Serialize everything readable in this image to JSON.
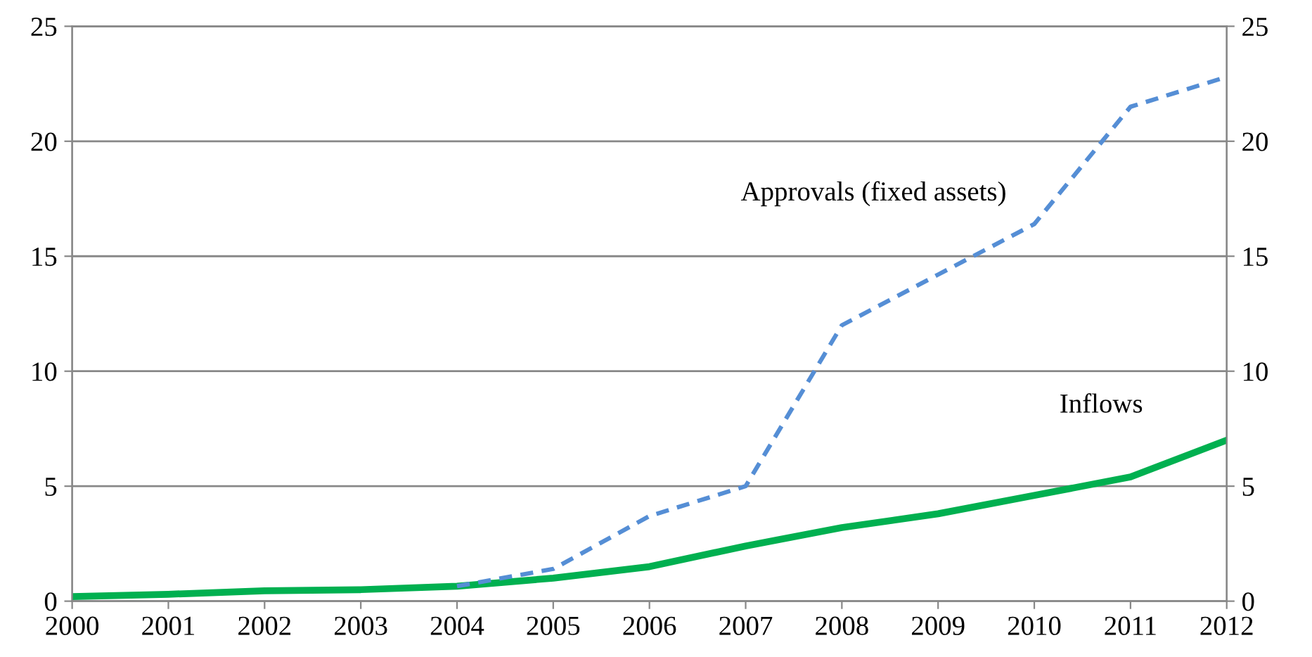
{
  "chart_data": {
    "type": "line",
    "categories": [
      "2000",
      "2001",
      "2002",
      "2003",
      "2004",
      "2005",
      "2006",
      "2007",
      "2008",
      "2009",
      "2010",
      "2011",
      "2012"
    ],
    "series": [
      {
        "name": "Approvals (fixed assets)",
        "color": "#558ed5",
        "line_style": "dashed",
        "values": [
          null,
          null,
          null,
          null,
          0.65,
          1.4,
          3.7,
          5.0,
          12.0,
          14.2,
          16.4,
          21.5,
          22.8
        ]
      },
      {
        "name": "Inflows",
        "color": "#00b050",
        "line_style": "solid",
        "values": [
          0.2,
          0.3,
          0.45,
          0.5,
          0.65,
          1.0,
          1.5,
          2.4,
          3.2,
          3.8,
          4.6,
          5.4,
          7.0
        ]
      }
    ],
    "ylim": [
      0,
      25
    ],
    "yticks": [
      0,
      5,
      10,
      15,
      20,
      25
    ],
    "y2lim": [
      0,
      25
    ],
    "y2ticks": [
      0,
      5,
      10,
      15,
      20,
      25
    ],
    "grid": "y",
    "legend": false,
    "marker": "none"
  }
}
